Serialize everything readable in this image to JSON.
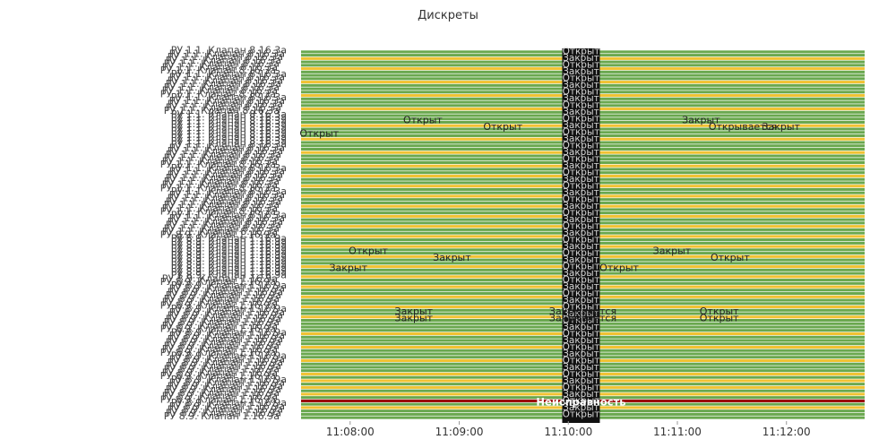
{
  "chart_data": {
    "type": "timeline",
    "title": "Дискреты",
    "x_ticks": [
      "11:08:00",
      "11:09:00",
      "11:10:00",
      "11:11:00",
      "11:12:00"
    ],
    "x_range": [
      "11:07:33",
      "11:12:43"
    ],
    "row_count": 110,
    "row_labels_sample": [
      "РУ 1.1. Клапан 8.16.3а",
      "РУ 8.9. Клапан 1.16.9а"
    ],
    "states": {
      "open": {
        "label": "Открыт",
        "color": "#6aa84f"
      },
      "closed": {
        "label": "Закрыт",
        "color": "#f1c232"
      },
      "fault": {
        "label": "Неисправность",
        "color": "#990000"
      }
    },
    "yellow_row_indices": [
      2,
      5,
      9,
      13,
      17,
      22,
      26,
      30,
      34,
      37,
      40,
      43,
      46,
      49,
      52,
      55,
      58,
      61,
      64,
      67,
      70,
      73,
      76,
      79,
      84,
      88,
      92,
      96,
      98,
      100,
      102,
      106
    ],
    "fault_row_index": 104,
    "labels": [
      {
        "text": "Открыт",
        "time": "11:08:40",
        "row": 20
      },
      {
        "text": "Открыт",
        "time": "11:09:24",
        "row": 22
      },
      {
        "text": "Открыт",
        "time": "11:07:43",
        "row": 24
      },
      {
        "text": "Закрыт",
        "time": "11:11:13",
        "row": 20
      },
      {
        "text": "Открывается",
        "time": "11:11:36",
        "row": 22
      },
      {
        "text": "Закрыт",
        "time": "11:11:57",
        "row": 22
      },
      {
        "text": "Открыт",
        "time": "11:08:10",
        "row": 59
      },
      {
        "text": "Закрыт",
        "time": "11:08:56",
        "row": 61
      },
      {
        "text": "Закрыт",
        "time": "11:10:57",
        "row": 59
      },
      {
        "text": "Открыт",
        "time": "11:11:29",
        "row": 61
      },
      {
        "text": "Закрыт",
        "time": "11:07:59",
        "row": 64
      },
      {
        "text": "Открыт",
        "time": "11:10:28",
        "row": 64
      },
      {
        "text": "Закрыт",
        "time": "11:08:35",
        "row": 77
      },
      {
        "text": "Закрыт",
        "time": "11:08:35",
        "row": 79
      },
      {
        "text": "Закрывается",
        "time": "11:10:08",
        "row": 77
      },
      {
        "text": "Закрывается",
        "time": "11:10:08",
        "row": 79
      },
      {
        "text": "Открыт",
        "time": "11:11:23",
        "row": 77
      },
      {
        "text": "Открыт",
        "time": "11:11:23",
        "row": 79
      },
      {
        "text": "Неисправность",
        "time": "11:10:07",
        "row": 104
      }
    ]
  }
}
